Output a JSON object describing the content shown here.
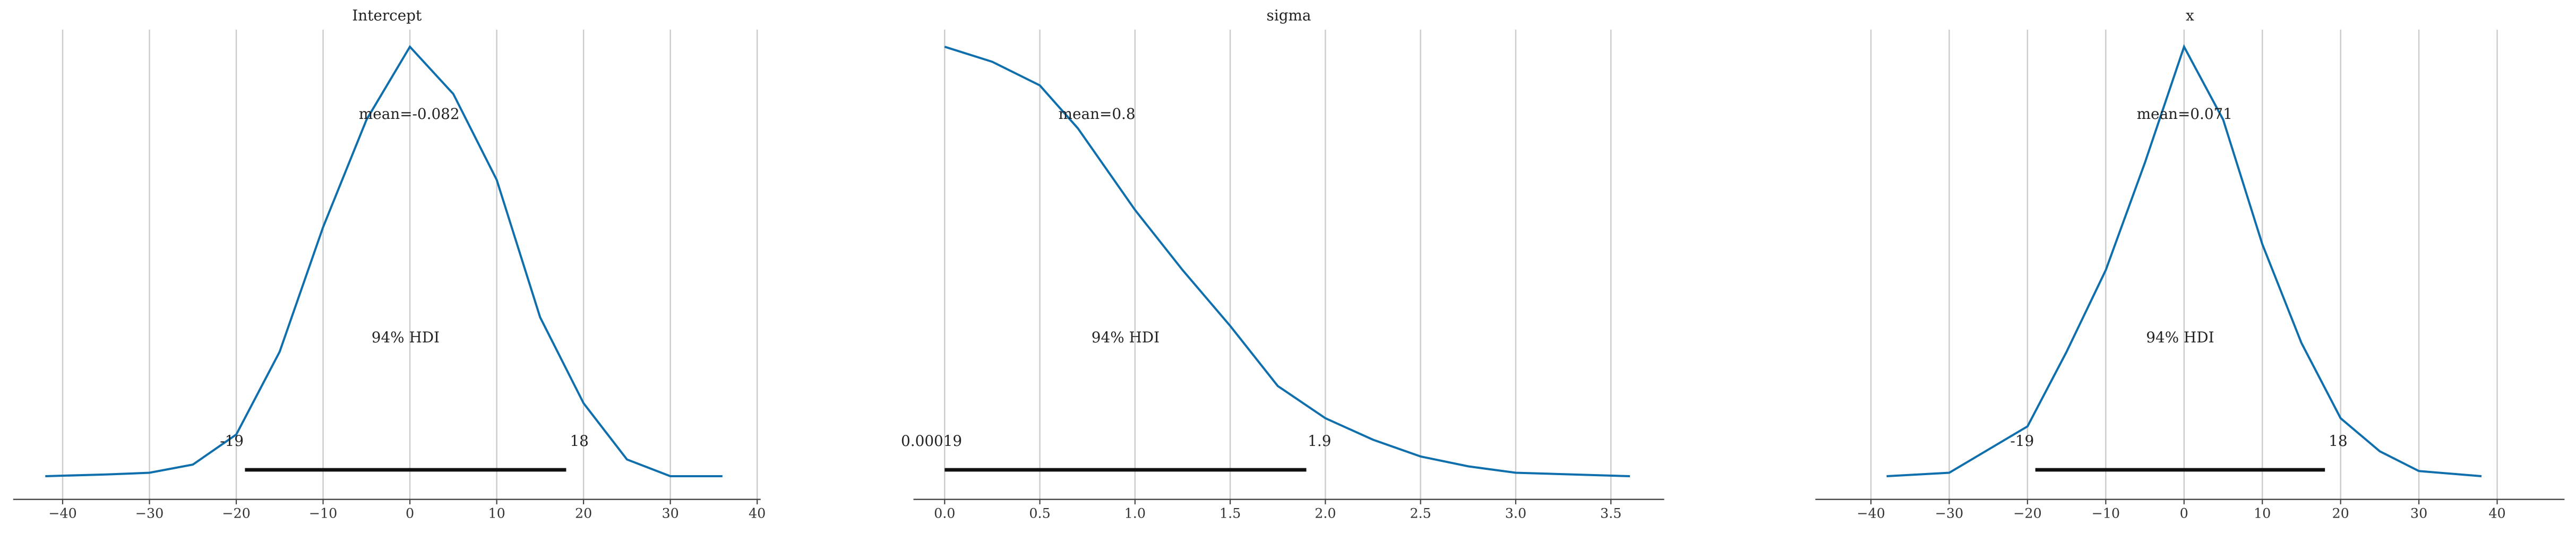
{
  "chart_data": [
    {
      "type": "line",
      "title": "Intercept",
      "color": "#0f6fad",
      "grid": true,
      "x": [
        -42,
        -35,
        -30,
        -25,
        -20,
        -15,
        -10,
        -5,
        0,
        5,
        10,
        15,
        20,
        25,
        30,
        36
      ],
      "values": [
        0,
        0.004,
        0.008,
        0.027,
        0.097,
        0.29,
        0.58,
        0.83,
        1.0,
        0.89,
        0.69,
        0.37,
        0.17,
        0.039,
        0,
        0
      ],
      "xlim": [
        -45.7,
        40.4
      ],
      "xticks": [
        {
          "value": -40,
          "label": "−40"
        },
        {
          "value": -30,
          "label": "−30"
        },
        {
          "value": -20,
          "label": "−20"
        },
        {
          "value": -10,
          "label": "−10"
        },
        0,
        10,
        20,
        30,
        40
      ],
      "ylim": [
        -0.054,
        1.04
      ],
      "mean": {
        "value": -0.082,
        "label": "mean=-0.082"
      },
      "hdi": {
        "label": "94% HDI",
        "values": [
          -19,
          18
        ]
      }
    },
    {
      "type": "line",
      "title": "sigma",
      "color": "#0f6fad",
      "grid": true,
      "x": [
        0,
        0.25,
        0.5,
        0.7,
        1.0,
        1.25,
        1.5,
        1.75,
        2.0,
        2.25,
        2.5,
        2.75,
        3.0,
        3.6
      ],
      "values": [
        1.0,
        0.965,
        0.91,
        0.81,
        0.62,
        0.48,
        0.35,
        0.21,
        0.135,
        0.085,
        0.046,
        0.023,
        0.008,
        0
      ],
      "xlim": [
        -0.164,
        3.78
      ],
      "xticks": [
        {
          "value": 0,
          "label": "0.0"
        },
        0.5,
        {
          "value": 1,
          "label": "1.0"
        },
        1.5,
        {
          "value": 2,
          "label": "2.0"
        },
        2.5,
        {
          "value": 3,
          "label": "3.0"
        },
        3.5
      ],
      "ylim": [
        -0.054,
        1.04
      ],
      "mean": {
        "value": 0.8,
        "label": "mean=0.8"
      },
      "hdi": {
        "label": "94% HDI",
        "values": [
          0.00019,
          1.9
        ]
      }
    },
    {
      "type": "line",
      "title": "x",
      "color": "#0f6fad",
      "grid": true,
      "x": [
        -38,
        -30,
        -20,
        -15,
        -10,
        -5,
        0,
        5,
        10,
        15,
        20,
        25,
        30,
        38
      ],
      "values": [
        0,
        0.008,
        0.116,
        0.29,
        0.48,
        0.73,
        1.0,
        0.83,
        0.54,
        0.31,
        0.135,
        0.058,
        0.012,
        0
      ],
      "xlim": [
        -47.1,
        48.6
      ],
      "xticks": [
        {
          "value": -40,
          "label": "−40"
        },
        {
          "value": -30,
          "label": "−30"
        },
        {
          "value": -20,
          "label": "−20"
        },
        {
          "value": -10,
          "label": "−10"
        },
        0,
        10,
        20,
        30,
        40
      ],
      "ylim": [
        -0.054,
        1.04
      ],
      "mean": {
        "value": 0.071,
        "label": "mean=0.071"
      },
      "hdi": {
        "label": "94% HDI",
        "values": [
          -19,
          18
        ]
      }
    }
  ]
}
